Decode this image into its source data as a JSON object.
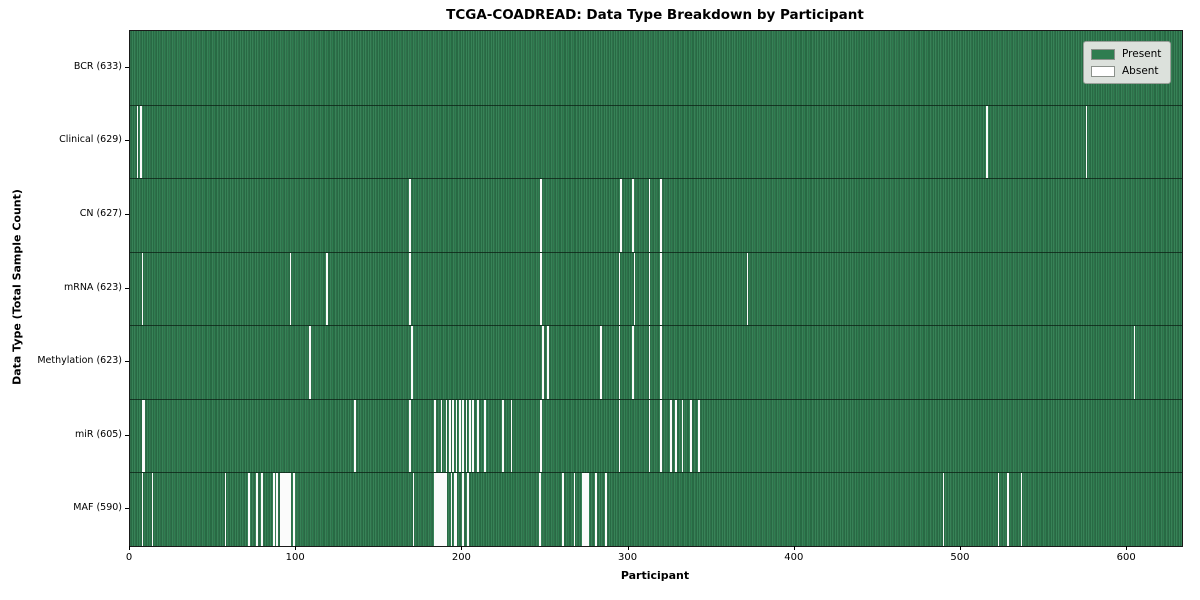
{
  "title": "TCGA-COADREAD: Data Type Breakdown by Participant",
  "chart_data": {
    "type": "heatmap",
    "title": "TCGA-COADREAD: Data Type Breakdown by Participant",
    "xlabel": "Participant",
    "ylabel": "Data Type (Total Sample Count)",
    "x_range": [
      0,
      633
    ],
    "x_ticks": [
      0,
      100,
      200,
      300,
      400,
      500,
      600
    ],
    "grid": false,
    "legend": {
      "position": "upper right",
      "items": [
        {
          "label": "Present",
          "color": "#2f7d50"
        },
        {
          "label": "Absent",
          "color": "#ffffff"
        }
      ]
    },
    "cell_values": "present=1 (green), absent=0 (white)",
    "rows": [
      {
        "label": "BCR (633)",
        "data_type": "BCR",
        "present_count": 633,
        "absent": []
      },
      {
        "label": "Clinical (629)",
        "data_type": "Clinical",
        "present_count": 629,
        "absent": [
          4,
          6,
          515,
          575
        ]
      },
      {
        "label": "CN (627)",
        "data_type": "CN",
        "present_count": 627,
        "absent": [
          168,
          247,
          295,
          302,
          312,
          319
        ]
      },
      {
        "label": "mRNA (623)",
        "data_type": "mRNA",
        "present_count": 623,
        "absent": [
          7,
          96,
          118,
          168,
          247,
          294,
          303,
          312,
          319,
          371
        ]
      },
      {
        "label": "Methylation (623)",
        "data_type": "Methylation",
        "present_count": 623,
        "absent": [
          108,
          169,
          248,
          251,
          283,
          294,
          302,
          312,
          319,
          604
        ]
      },
      {
        "label": "miR (605)",
        "data_type": "miR",
        "present_count": 605,
        "absent": [
          7,
          8,
          135,
          168,
          183,
          187,
          190,
          192,
          194,
          196,
          198,
          200,
          202,
          204,
          206,
          209,
          213,
          224,
          229,
          247,
          294,
          312,
          319,
          325,
          328,
          332,
          337,
          342
        ]
      },
      {
        "label": "MAF (590)",
        "data_type": "MAF",
        "present_count": 590,
        "absent": [
          7,
          13,
          57,
          71,
          76,
          79,
          86,
          88,
          90,
          91,
          92,
          93,
          94,
          95,
          96,
          98,
          170,
          183,
          184,
          185,
          186,
          187,
          188,
          189,
          190,
          193,
          195,
          196,
          200,
          203,
          246,
          260,
          267,
          272,
          273,
          274,
          275,
          280,
          286,
          489,
          522,
          528,
          536
        ]
      }
    ]
  }
}
